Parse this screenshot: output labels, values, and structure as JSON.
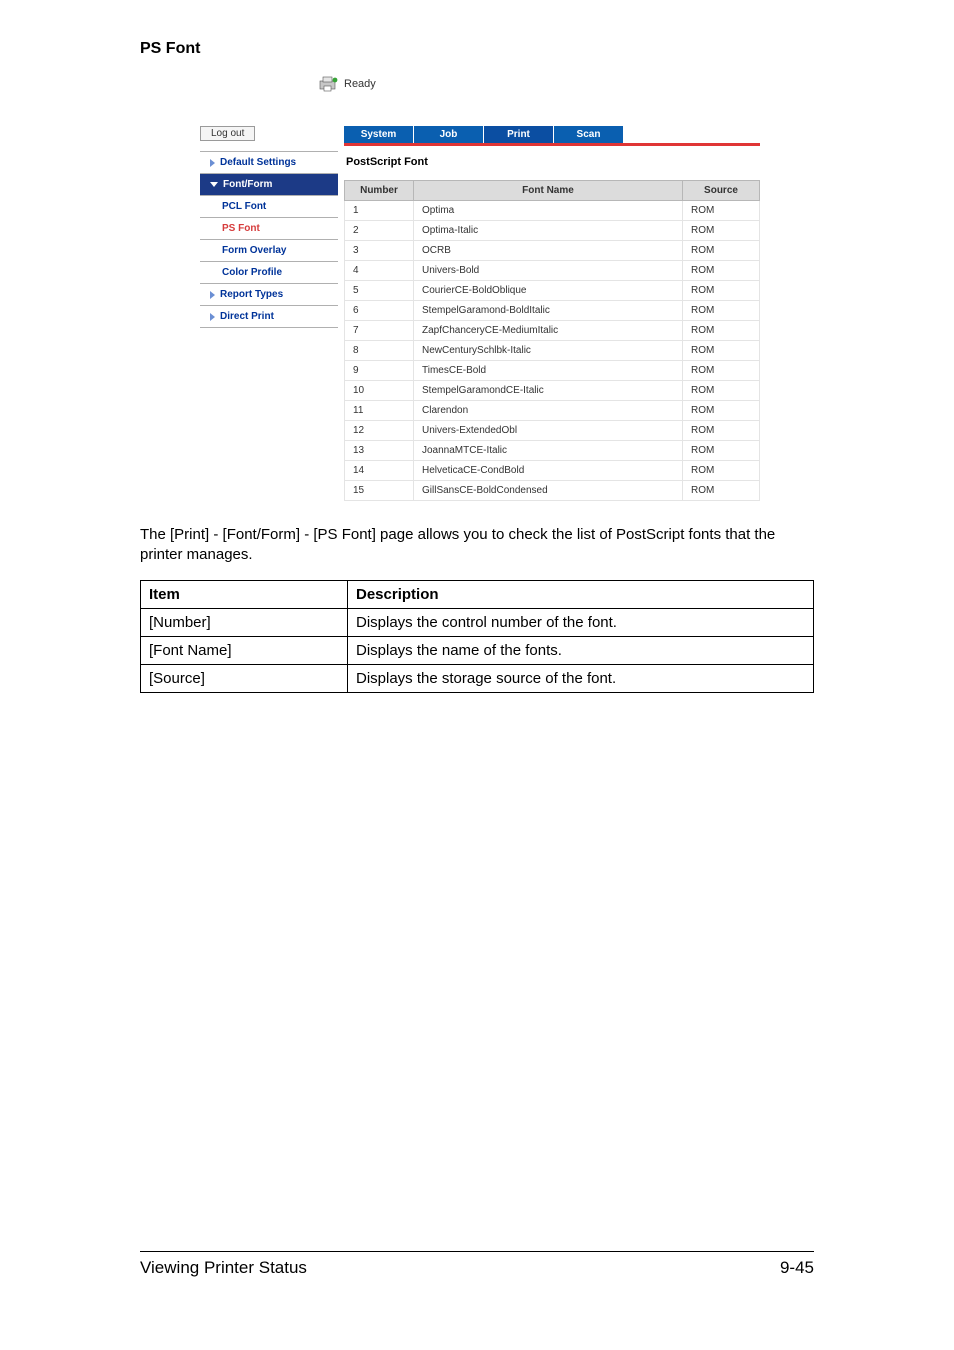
{
  "section_title": "PS Font",
  "status_text": "Ready",
  "logout_label": "Log out",
  "sidebar": {
    "default_settings": "Default Settings",
    "font_form": "Font/Form",
    "pcl_font": "PCL Font",
    "ps_font": "PS Font",
    "form_overlay": "Form Overlay",
    "color_profile": "Color Profile",
    "report_types": "Report Types",
    "direct_print": "Direct Print"
  },
  "tabs": {
    "system": "System",
    "job": "Job",
    "print": "Print",
    "scan": "Scan"
  },
  "panel_title": "PostScript Font",
  "font_table": {
    "headers": {
      "number": "Number",
      "name": "Font Name",
      "source": "Source"
    },
    "rows": [
      {
        "n": "1",
        "name": "Optima",
        "src": "ROM"
      },
      {
        "n": "2",
        "name": "Optima-Italic",
        "src": "ROM"
      },
      {
        "n": "3",
        "name": "OCRB",
        "src": "ROM"
      },
      {
        "n": "4",
        "name": "Univers-Bold",
        "src": "ROM"
      },
      {
        "n": "5",
        "name": "CourierCE-BoldOblique",
        "src": "ROM"
      },
      {
        "n": "6",
        "name": "StempelGaramond-BoldItalic",
        "src": "ROM"
      },
      {
        "n": "7",
        "name": "ZapfChanceryCE-MediumItalic",
        "src": "ROM"
      },
      {
        "n": "8",
        "name": "NewCenturySchlbk-Italic",
        "src": "ROM"
      },
      {
        "n": "9",
        "name": "TimesCE-Bold",
        "src": "ROM"
      },
      {
        "n": "10",
        "name": "StempelGaramondCE-Italic",
        "src": "ROM"
      },
      {
        "n": "11",
        "name": "Clarendon",
        "src": "ROM"
      },
      {
        "n": "12",
        "name": "Univers-ExtendedObl",
        "src": "ROM"
      },
      {
        "n": "13",
        "name": "JoannaMTCE-Italic",
        "src": "ROM"
      },
      {
        "n": "14",
        "name": "HelveticaCE-CondBold",
        "src": "ROM"
      },
      {
        "n": "15",
        "name": "GillSansCE-BoldCondensed",
        "src": "ROM"
      }
    ]
  },
  "body_text": "The [Print] - [Font/Form] - [PS Font] page allows you to check the list of Post­Script fonts that the printer manages.",
  "desc_table": {
    "headers": {
      "item": "Item",
      "desc": "Description"
    },
    "rows": [
      {
        "item": "[Number]",
        "desc": "Displays the control number of the font."
      },
      {
        "item": "[Font Name]",
        "desc": "Displays the name of the fonts."
      },
      {
        "item": "[Source]",
        "desc": "Displays the storage source of the font."
      }
    ]
  },
  "footer": {
    "left": "Viewing Printer Status",
    "right": "9-45"
  }
}
